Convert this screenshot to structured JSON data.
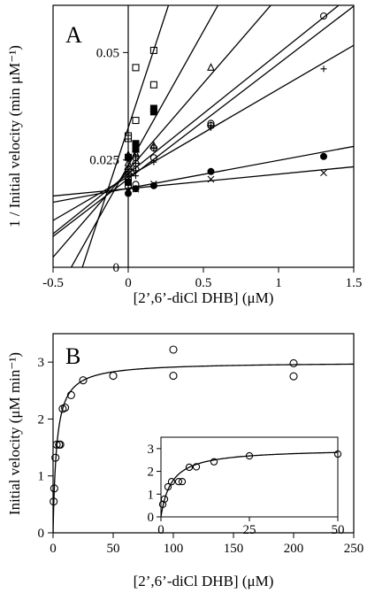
{
  "chart_data": [
    {
      "type": "line",
      "panel_label": "A",
      "xlabel": "[2’,6’-diCl DHB] (μM)",
      "ylabel": "1 / Initial velocity (min μM⁻¹)",
      "xlim": [
        -0.5,
        1.5
      ],
      "ylim": [
        0,
        0.061
      ],
      "xticks": [
        -0.5,
        0,
        0.5,
        1,
        1.5
      ],
      "xtick_labels": [
        "-0.5",
        "0",
        "0.5",
        "1",
        "1.5"
      ],
      "yticks": [
        0,
        0.025,
        0.05
      ],
      "ytick_labels": [
        "0",
        "0.025",
        "0.05"
      ],
      "grid": false,
      "series": [
        {
          "marker": "open-square",
          "x": [
            0,
            0,
            0.05,
            0.05,
            0.17,
            0.17
          ],
          "y": [
            0.0306,
            0.03,
            0.0342,
            0.0465,
            0.0425,
            0.0505
          ],
          "fit": {
            "slope": 0.1065,
            "intercept": 0.0325
          }
        },
        {
          "marker": "filled-square",
          "x": [
            0,
            0,
            0.05,
            0.05,
            0.17,
            0.17
          ],
          "y": [
            0.0198,
            0.0256,
            0.0275,
            0.0288,
            0.0362,
            0.037
          ],
          "fit": {
            "slope": 0.0625,
            "intercept": 0.0237
          }
        },
        {
          "marker": "open-triangle",
          "x": [
            0,
            0,
            0.05,
            0.05,
            0.17,
            0.55
          ],
          "y": [
            0.0243,
            0.0262,
            0.0265,
            0.0276,
            0.0283,
            0.0465
          ],
          "fit": {
            "slope": 0.0405,
            "intercept": 0.0226
          }
        },
        {
          "marker": "circle-plus",
          "x": [
            0,
            0,
            0.05,
            0.05,
            0.17,
            0.55
          ],
          "y": [
            0.0218,
            0.0228,
            0.0242,
            0.0255,
            0.0278,
            0.033
          ],
          "fit": {
            "slope": 0.028,
            "intercept": 0.0218
          }
        },
        {
          "marker": "plus",
          "x": [
            0,
            0.05,
            0.05,
            0.17,
            0.55,
            1.3
          ],
          "y": [
            0.0192,
            0.0213,
            0.0225,
            0.0245,
            0.0325,
            0.0462
          ],
          "fit": {
            "slope": 0.0204,
            "intercept": 0.0211
          }
        },
        {
          "marker": "open-circle",
          "x": [
            0,
            0,
            0.05,
            0.05,
            0.17,
            0.55,
            1.3
          ],
          "y": [
            0.0188,
            0.0208,
            0.0193,
            0.0228,
            0.0255,
            0.0335,
            0.0585
          ],
          "fit": {
            "slope": 0.0268,
            "intercept": 0.0206
          }
        },
        {
          "marker": "filled-circle",
          "x": [
            0,
            0.05,
            0.17,
            0.55,
            1.3
          ],
          "y": [
            0.0172,
            0.0183,
            0.019,
            0.0223,
            0.0258
          ],
          "fit": {
            "slope": 0.0065,
            "intercept": 0.0184
          }
        },
        {
          "marker": "cross",
          "x": [
            0,
            0.05,
            0.17,
            0.55,
            1.3
          ],
          "y": [
            0.0177,
            0.0182,
            0.0194,
            0.0205,
            0.022
          ],
          "fit": {
            "slope": 0.0034,
            "intercept": 0.0183
          }
        }
      ]
    },
    {
      "type": "scatter",
      "panel_label": "B",
      "xlabel": "[2’,6’-diCl DHB] (μM)",
      "ylabel": "Initial velocity (μM min⁻¹)",
      "xlim": [
        0,
        250
      ],
      "ylim": [
        0,
        3.5
      ],
      "xticks": [
        0,
        50,
        100,
        150,
        200,
        250
      ],
      "xtick_labels": [
        "0",
        "50",
        "100",
        "150",
        "200",
        "250"
      ],
      "yticks": [
        0,
        1,
        2,
        3
      ],
      "ytick_labels": [
        "0",
        "1",
        "2",
        "3"
      ],
      "grid": false,
      "fit": {
        "model": "michaelis-menten",
        "vmax": 3.0,
        "km": 3.0
      },
      "series": [
        {
          "marker": "open-circle",
          "x": [
            0.5,
            1,
            2,
            3,
            5,
            6,
            8,
            10,
            15,
            25,
            50,
            100,
            100,
            200,
            200
          ],
          "y": [
            0.55,
            0.78,
            1.32,
            1.55,
            1.55,
            1.55,
            2.18,
            2.2,
            2.42,
            2.68,
            2.76,
            3.22,
            2.76,
            2.98,
            2.75
          ]
        }
      ],
      "inset": {
        "xlim": [
          0,
          50
        ],
        "ylim": [
          0,
          3.5
        ],
        "xticks": [
          0,
          25,
          50
        ],
        "xtick_labels": [
          "0",
          "25",
          "50"
        ],
        "yticks": [
          0,
          1,
          2,
          3
        ],
        "ytick_labels": [
          "0",
          "1",
          "2",
          "3"
        ],
        "x": [
          0.5,
          1,
          2,
          3,
          5,
          6,
          8,
          10,
          15,
          25,
          50
        ],
        "y": [
          0.55,
          0.78,
          1.32,
          1.55,
          1.55,
          1.55,
          2.18,
          2.2,
          2.42,
          2.68,
          2.76
        ]
      }
    }
  ]
}
